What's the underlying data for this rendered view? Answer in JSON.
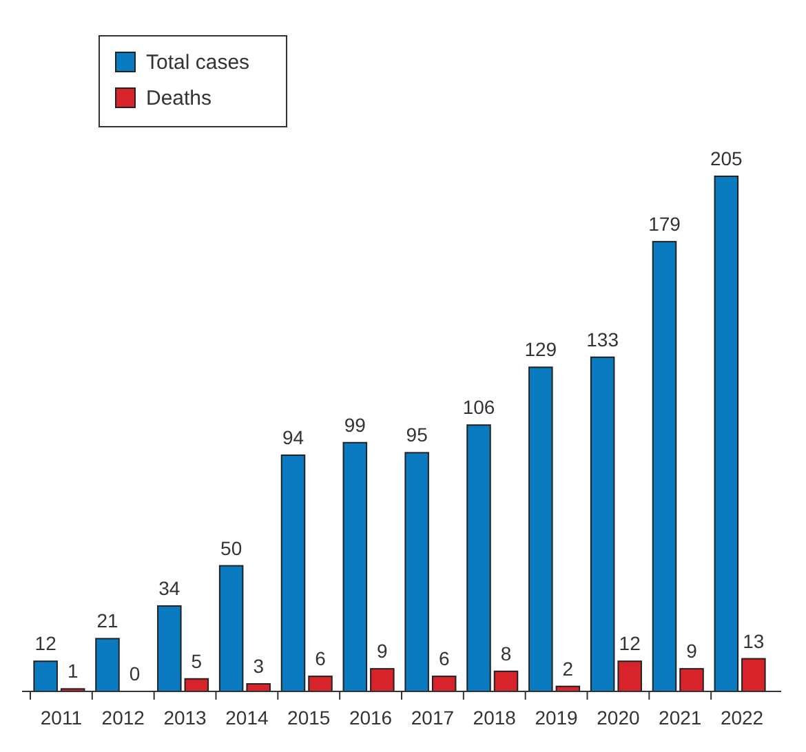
{
  "chart_data": {
    "type": "bar",
    "categories": [
      "2011",
      "2012",
      "2013",
      "2014",
      "2015",
      "2016",
      "2017",
      "2018",
      "2019",
      "2020",
      "2021",
      "2022"
    ],
    "series": [
      {
        "name": "Total cases",
        "color": "#0a7bc1",
        "values": [
          12,
          21,
          34,
          50,
          94,
          99,
          95,
          106,
          129,
          133,
          179,
          205
        ]
      },
      {
        "name": "Deaths",
        "color": "#d7242a",
        "values": [
          1,
          0,
          5,
          3,
          6,
          9,
          6,
          8,
          2,
          12,
          9,
          13
        ]
      }
    ],
    "data_labels": true,
    "legend": "top left"
  }
}
